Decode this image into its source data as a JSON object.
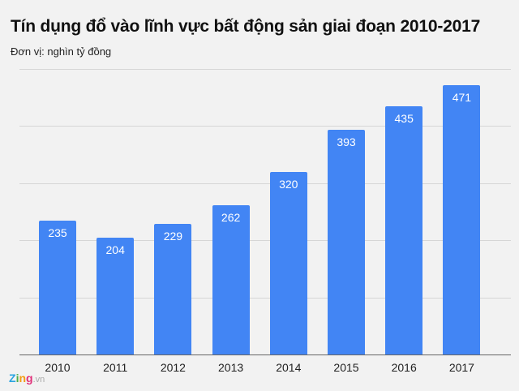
{
  "header": {
    "title": "Tín dụng đổ vào lĩnh vực bất động sản giai đoạn 2010-2017",
    "subtitle": "Đơn vị: nghìn tỷ đồng"
  },
  "logo": {
    "z": "Z",
    "i": "i",
    "n": "n",
    "g": "g",
    "vn": ".vn"
  },
  "chart_data": {
    "type": "bar",
    "title": "Tín dụng đổ vào lĩnh vực bất động sản giai đoạn 2010-2017",
    "subtitle": "Đơn vị: nghìn tỷ đồng",
    "categories": [
      "2010",
      "2011",
      "2012",
      "2013",
      "2014",
      "2015",
      "2016",
      "2017"
    ],
    "values": [
      235,
      204,
      229,
      262,
      320,
      393,
      435,
      471
    ],
    "xlabel": "",
    "ylabel": "",
    "ylim": [
      0,
      500
    ],
    "grid": true,
    "gridlines": [
      100,
      200,
      300,
      400,
      500
    ],
    "legend": null,
    "bar_color": "#4285f4"
  }
}
